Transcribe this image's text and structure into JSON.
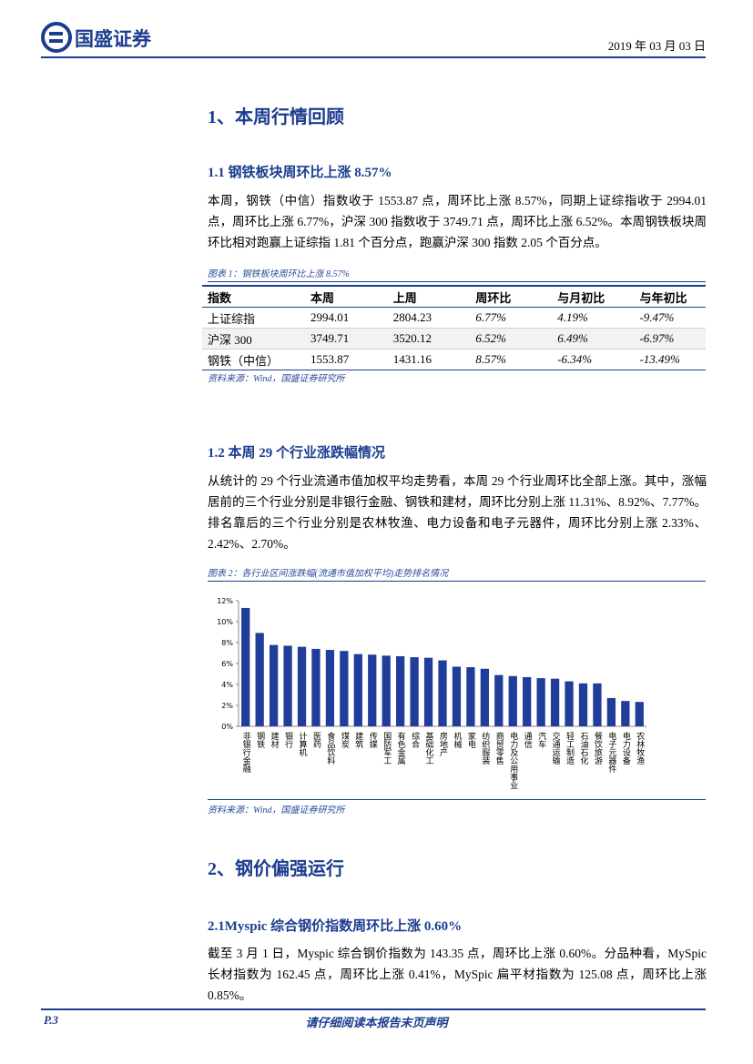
{
  "header": {
    "logo_text": "国盛证券",
    "date": "2019 年 03 月 03 日"
  },
  "section1": {
    "title": "1、本周行情回顾",
    "sub1": {
      "title": "1.1 钢铁板块周环比上涨 8.57%",
      "text": "本周，钢铁（中信）指数收于 1553.87 点，周环比上涨 8.57%，同期上证综指收于 2994.01 点，周环比上涨 6.77%，沪深 300 指数收于 3749.71 点，周环比上涨 6.52%。本周钢铁板块周环比相对跑赢上证综指 1.81 个百分点，跑赢沪深 300 指数 2.05 个百分点。",
      "caption": "图表 1：钢铁板块周环比上涨 8.57%",
      "table": {
        "header": [
          "指数",
          "本周",
          "上周",
          "周环比",
          "与月初比",
          "与年初比"
        ],
        "rows": [
          [
            "上证综指",
            "2994.01",
            "2804.23",
            "6.77%",
            "4.19%",
            "-9.47%"
          ],
          [
            "沪深 300",
            "3749.71",
            "3520.12",
            "6.52%",
            "6.49%",
            "-6.97%"
          ],
          [
            "钢铁（中信）",
            "1553.87",
            "1431.16",
            "8.57%",
            "-6.34%",
            "-13.49%"
          ]
        ]
      },
      "source": "资料来源：Wind，国盛证券研究所"
    },
    "sub2": {
      "title": "1.2 本周 29 个行业涨跌幅情况",
      "text": "从统计的 29 个行业流通市值加权平均走势看，本周 29 个行业周环比全部上涨。其中，涨幅居前的三个行业分别是非银行金融、钢铁和建材，周环比分别上涨 11.31%、8.92%、7.77%。排名靠后的三个行业分别是农林牧渔、电力设备和电子元器件，周环比分别上涨 2.33%、2.42%、2.70%。",
      "caption": "图表 2：各行业区间涨跌幅(流通市值加权平均)走势排名情况",
      "source": "资料来源：Wind，国盛证券研究所"
    }
  },
  "chart_data": {
    "type": "bar",
    "color": "#1f3d99",
    "categories": [
      "非银行金融",
      "钢铁",
      "建材",
      "银行",
      "计算机",
      "医药",
      "食品饮料",
      "煤炭",
      "建筑",
      "传媒",
      "国防军工",
      "有色金属",
      "综合",
      "基础化工",
      "房地产",
      "机械",
      "家电",
      "纺织服装",
      "商贸零售",
      "电力及公用事业",
      "通信",
      "汽车",
      "交通运输",
      "轻工制造",
      "石油石化",
      "餐饮旅游",
      "电子元器件",
      "电力设备",
      "农林牧渔"
    ],
    "values": [
      11.31,
      8.92,
      7.77,
      7.7,
      7.6,
      7.4,
      7.3,
      7.2,
      6.9,
      6.85,
      6.75,
      6.7,
      6.6,
      6.55,
      6.3,
      5.7,
      5.65,
      5.5,
      4.9,
      4.8,
      4.7,
      4.6,
      4.55,
      4.3,
      4.1,
      4.1,
      2.7,
      2.42,
      2.33
    ],
    "ylim": [
      0,
      12
    ],
    "yticks": [
      {
        "value": 0,
        "label": "0%"
      },
      {
        "value": 2,
        "label": "2%"
      },
      {
        "value": 4,
        "label": "4%"
      },
      {
        "value": 6,
        "label": "6%"
      },
      {
        "value": 8,
        "label": "8%"
      },
      {
        "value": 10,
        "label": "10%"
      },
      {
        "value": 12,
        "label": "12%"
      }
    ],
    "grid": false
  },
  "section2": {
    "title": "2、钢价偏强运行",
    "sub1": {
      "title": "2.1Myspic 综合钢价指数周环比上涨 0.60%",
      "text": "截至 3 月 1 日，Myspic 综合钢价指数为 143.35 点，周环比上涨 0.60%。分品种看，MySpic 长材指数为 162.45 点，周环比上涨 0.41%，MySpic 扁平材指数为 125.08 点，周环比上涨 0.85%。"
    }
  },
  "footer": {
    "page": "P.3",
    "notice": "请仔细阅读本报告末页声明"
  }
}
